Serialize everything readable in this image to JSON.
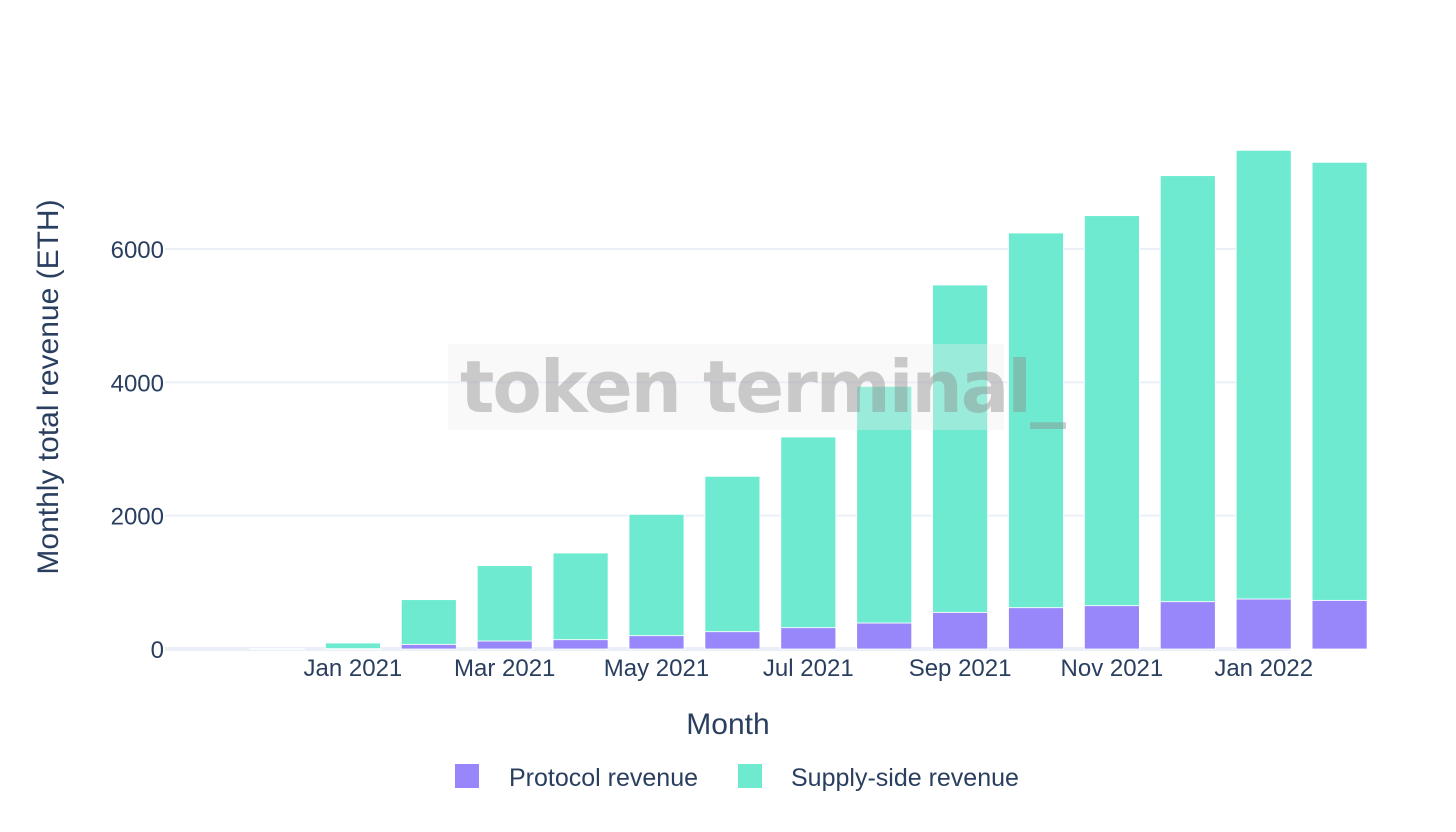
{
  "watermark": "token terminal_",
  "chart_data": {
    "type": "bar",
    "barmode": "stack",
    "categories": [
      "Dec 2020",
      "Jan 2021",
      "Feb 2021",
      "Mar 2021",
      "Apr 2021",
      "May 2021",
      "Jun 2021",
      "Jul 2021",
      "Aug 2021",
      "Sep 2021",
      "Oct 2021",
      "Nov 2021",
      "Dec 2021",
      "Jan 2022",
      "Feb 2022"
    ],
    "x_tick_labels": [
      {
        "label": "Jan 2021",
        "category": "Jan 2021"
      },
      {
        "label": "Mar 2021",
        "category": "Mar 2021"
      },
      {
        "label": "May 2021",
        "category": "May 2021"
      },
      {
        "label": "Jul 2021",
        "category": "Jul 2021"
      },
      {
        "label": "Sep 2021",
        "category": "Sep 2021"
      },
      {
        "label": "Nov 2021",
        "category": "Nov 2021"
      },
      {
        "label": "Jan 2022",
        "category": "Jan 2022"
      }
    ],
    "series": [
      {
        "name": "Protocol revenue",
        "color": "#9787fa",
        "values": [
          0,
          5,
          70,
          120,
          140,
          200,
          260,
          320,
          390,
          550,
          620,
          650,
          710,
          750,
          730
        ]
      },
      {
        "name": "Supply-side revenue",
        "color": "#6dead0",
        "values": [
          5,
          85,
          670,
          1130,
          1300,
          1820,
          2330,
          2860,
          3550,
          4910,
          5620,
          5850,
          6390,
          6730,
          6570
        ]
      }
    ],
    "xlabel": "Month",
    "ylabel": "Monthly total revenue (ETH)",
    "ylim": [
      0,
      7500
    ],
    "y_ticks": [
      0,
      2000,
      4000,
      6000
    ],
    "grid": true,
    "legend_position": "bottom-center"
  }
}
